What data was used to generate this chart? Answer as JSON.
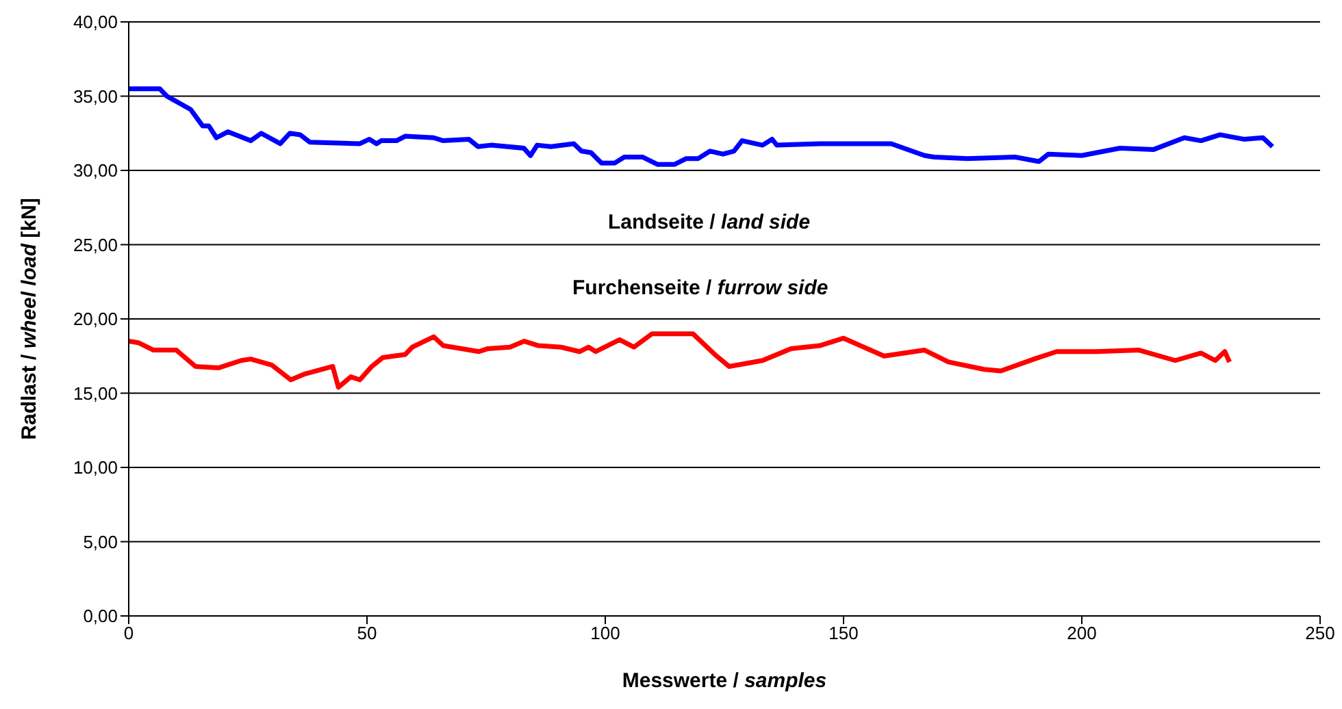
{
  "chart_data": {
    "type": "line",
    "xlabel": "Messwerte / samples",
    "ylabel": "Radlast / wheel load [kN]",
    "xlim": [
      0,
      250
    ],
    "xticks": [
      0,
      50,
      100,
      150,
      200,
      250
    ],
    "ylim": [
      0,
      40
    ],
    "yticks": [
      {
        "value": 0,
        "label": "0,00"
      },
      {
        "value": 5,
        "label": "5,00"
      },
      {
        "value": 10,
        "label": "10,00"
      },
      {
        "value": 15,
        "label": "15,00"
      },
      {
        "value": 20,
        "label": "20,00"
      },
      {
        "value": 25,
        "label": "25,00"
      },
      {
        "value": 30,
        "label": "30,00"
      },
      {
        "value": 35,
        "label": "35,00"
      },
      {
        "value": 40,
        "label": "40,00"
      }
    ],
    "grid": "y",
    "marker": "none",
    "line_style": "solid",
    "annotations": [
      "Landseite / land side",
      "Furchenseite / furrow side"
    ],
    "series": [
      {
        "color": "#0000ff",
        "x": [
          0,
          6.5,
          8,
          13,
          15.5,
          16.8,
          18.4,
          20.8,
          25.6,
          27.8,
          31.8,
          33.8,
          36,
          38,
          48.5,
          50.5,
          52,
          53,
          56.2,
          58,
          64,
          66,
          71.4,
          73.3,
          76,
          82.9,
          84.3,
          85.7,
          88.6,
          93.4,
          95,
          97,
          99.2,
          102,
          104,
          107.8,
          111,
          114.5,
          117,
          119.5,
          122,
          124.7,
          127,
          128.7,
          133,
          135,
          136,
          145,
          160,
          167,
          169,
          176,
          186,
          191,
          193,
          200,
          208,
          215,
          221.5,
          225,
          229,
          234,
          238,
          240
        ],
        "values": [
          35.5,
          35.5,
          35.0,
          34.1,
          33.0,
          33.0,
          32.2,
          32.6,
          32.0,
          32.5,
          31.8,
          32.5,
          32.4,
          31.9,
          31.8,
          32.1,
          31.8,
          32.0,
          32.0,
          32.3,
          32.2,
          32.0,
          32.1,
          31.6,
          31.7,
          31.5,
          31.0,
          31.7,
          31.6,
          31.8,
          31.3,
          31.2,
          30.5,
          30.5,
          30.9,
          30.9,
          30.4,
          30.4,
          30.8,
          30.8,
          31.3,
          31.1,
          31.3,
          32.0,
          31.7,
          32.1,
          31.7,
          31.8,
          31.8,
          31.0,
          30.9,
          30.8,
          30.9,
          30.6,
          31.1,
          31.0,
          31.5,
          31.4,
          32.2,
          32.0,
          32.4,
          32.1,
          32.2,
          31.6
        ]
      },
      {
        "color": "#ff0000",
        "x": [
          0,
          2,
          5.2,
          10,
          14,
          18.8,
          23.6,
          25.6,
          30,
          34,
          37,
          42.8,
          44,
          46.6,
          48.5,
          51,
          53.3,
          58,
          59.5,
          64,
          66,
          73.5,
          75.4,
          80,
          83,
          86,
          90.7,
          94.6,
          96.5,
          98,
          103,
          106,
          109.8,
          118.4,
          123,
          126,
          133,
          139,
          145,
          150,
          158.5,
          167,
          172,
          179.5,
          183,
          190,
          194.7,
          203,
          212,
          219.6,
          225,
          228,
          230,
          231
        ],
        "values": [
          18.5,
          18.4,
          17.9,
          17.9,
          16.8,
          16.7,
          17.2,
          17.3,
          16.9,
          15.9,
          16.3,
          16.8,
          15.4,
          16.1,
          15.9,
          16.8,
          17.4,
          17.6,
          18.1,
          18.8,
          18.2,
          17.8,
          18.0,
          18.1,
          18.5,
          18.2,
          18.1,
          17.8,
          18.1,
          17.8,
          18.6,
          18.1,
          19.0,
          19.0,
          17.6,
          16.8,
          17.2,
          18.0,
          18.2,
          18.7,
          17.5,
          17.9,
          17.1,
          16.6,
          16.5,
          17.3,
          17.8,
          17.8,
          17.9,
          17.2,
          17.7,
          17.2,
          17.8,
          17.1
        ]
      }
    ]
  }
}
